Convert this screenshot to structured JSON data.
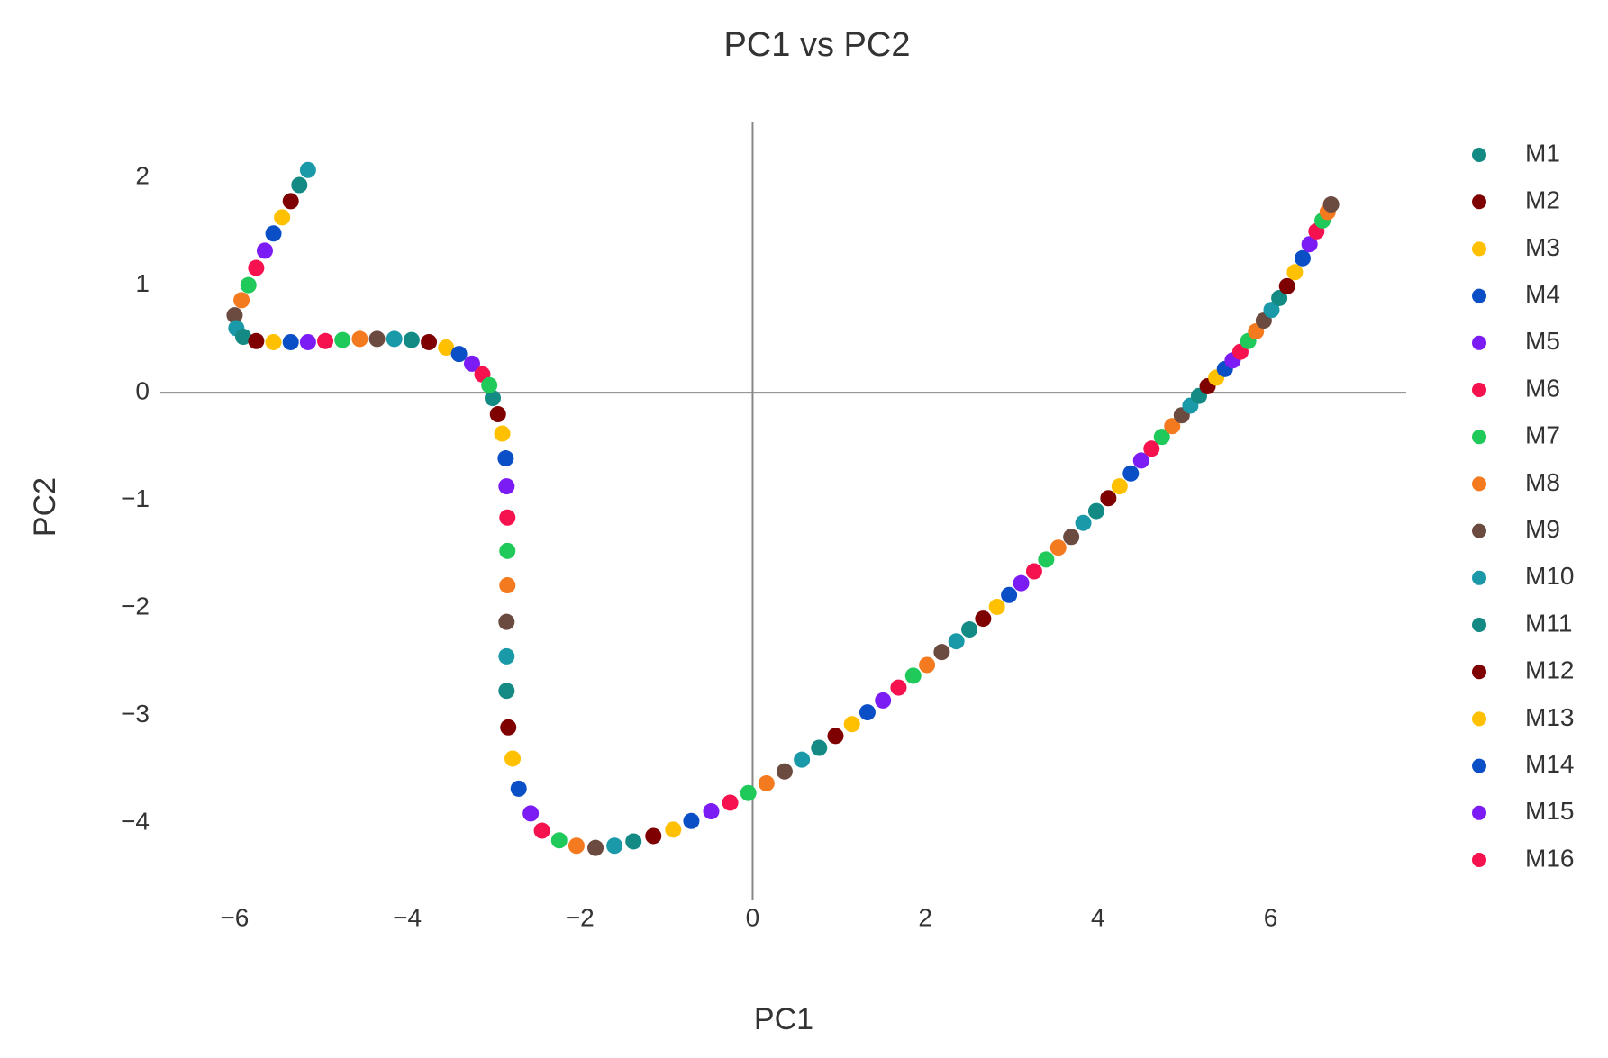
{
  "chart_data": {
    "type": "scatter",
    "title": "PC1 vs PC2",
    "x_label": "PC1",
    "y_label": "PC2",
    "x": [
      -3.01,
      -2.95,
      -2.9,
      -2.86,
      -2.85,
      -2.84,
      -2.84,
      -2.84,
      -2.85,
      -2.85,
      -2.85,
      -2.83,
      -2.78,
      -2.71,
      -2.57,
      -2.44,
      -2.24,
      -2.04,
      -1.82,
      -1.6,
      -1.38,
      -1.15,
      -0.92,
      -0.71,
      -0.48,
      -0.26,
      -0.05,
      0.16,
      0.37,
      0.57,
      0.77,
      0.96,
      1.15,
      1.33,
      1.51,
      1.69,
      1.86,
      2.02,
      2.19,
      2.36,
      2.51,
      2.67,
      2.83,
      2.97,
      3.11,
      3.26,
      3.4,
      3.54,
      3.69,
      3.83,
      3.98,
      4.12,
      4.25,
      4.38,
      4.5,
      4.62,
      4.74,
      4.86,
      4.97,
      5.07,
      5.17,
      5.27,
      5.37,
      5.47,
      5.56,
      5.65,
      5.74,
      5.83,
      5.92,
      6.01,
      6.1,
      6.19,
      6.28,
      6.37,
      6.45,
      6.53,
      6.6,
      6.66,
      6.7,
      -5.15,
      -5.25,
      -5.35,
      -5.45,
      -5.55,
      -5.65,
      -5.75,
      -5.84,
      -5.92,
      -6.0,
      -5.98,
      -5.9,
      -5.75,
      -5.55,
      -5.35,
      -5.15,
      -4.95,
      -4.75,
      -4.55,
      -4.35,
      -4.15,
      -3.95,
      -3.75,
      -3.55,
      -3.4,
      -3.25,
      -3.13,
      -3.05
    ],
    "y": [
      -0.05,
      -0.2,
      -0.38,
      -0.61,
      -0.87,
      -1.16,
      -1.47,
      -1.79,
      -2.13,
      -2.45,
      -2.77,
      -3.11,
      -3.4,
      -3.68,
      -3.91,
      -4.07,
      -4.16,
      -4.21,
      -4.23,
      -4.21,
      -4.17,
      -4.12,
      -4.06,
      -3.98,
      -3.89,
      -3.81,
      -3.72,
      -3.63,
      -3.52,
      -3.41,
      -3.3,
      -3.19,
      -3.08,
      -2.97,
      -2.86,
      -2.74,
      -2.63,
      -2.53,
      -2.41,
      -2.31,
      -2.2,
      -2.1,
      -1.99,
      -1.88,
      -1.77,
      -1.66,
      -1.55,
      -1.44,
      -1.34,
      -1.21,
      -1.1,
      -0.98,
      -0.87,
      -0.75,
      -0.63,
      -0.52,
      -0.41,
      -0.31,
      -0.21,
      -0.12,
      -0.03,
      0.06,
      0.14,
      0.22,
      0.3,
      0.38,
      0.48,
      0.57,
      0.67,
      0.77,
      0.88,
      0.99,
      1.12,
      1.25,
      1.38,
      1.5,
      1.6,
      1.68,
      1.75,
      2.07,
      1.93,
      1.78,
      1.63,
      1.48,
      1.32,
      1.16,
      1.0,
      0.86,
      0.72,
      0.6,
      0.52,
      0.48,
      0.47,
      0.47,
      0.47,
      0.48,
      0.49,
      0.5,
      0.5,
      0.5,
      0.49,
      0.47,
      0.42,
      0.36,
      0.27,
      0.17,
      0.07
    ],
    "palette": [
      "#138a83",
      "#7f0000",
      "#ffc000",
      "#0b4fc6",
      "#7b1cf5",
      "#f5124e",
      "#1fc95a",
      "#f47a20",
      "#6b4a3f",
      "#1a9aa8"
    ],
    "legend": [
      "M1",
      "M2",
      "M3",
      "M4",
      "M5",
      "M6",
      "M7",
      "M8",
      "M9",
      "M10",
      "M11",
      "M12",
      "M13",
      "M14",
      "M15",
      "M16"
    ],
    "xlim": [
      -6.86,
      7.57
    ],
    "ylim": [
      -4.71,
      2.52
    ],
    "xticks": [
      {
        "value": -6,
        "label": "−6"
      },
      {
        "value": -4,
        "label": "−4"
      },
      {
        "value": -2,
        "label": "−2"
      },
      0,
      2,
      4,
      6
    ],
    "yticks": [
      {
        "value": -4,
        "label": "−4"
      },
      {
        "value": -3,
        "label": "−3"
      },
      {
        "value": -2,
        "label": "−2"
      },
      {
        "value": -1,
        "label": "−1"
      },
      0,
      1,
      2
    ],
    "zeroline": true
  }
}
